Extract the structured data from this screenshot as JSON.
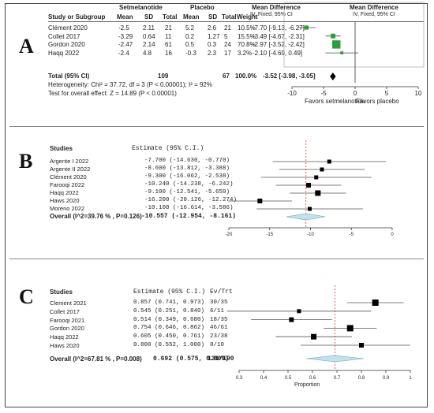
{
  "panel_labels": [
    "A",
    "B",
    "C"
  ],
  "chart_data": [
    {
      "type": "table",
      "panel": "A",
      "group_headers": {
        "experimental": "Setmelanotide",
        "control": "Placebo",
        "effect": "Mean Difference",
        "effect_sub": "IV, Fixed, 95% CI",
        "plot": "Mean Difference",
        "plot_sub": "IV, Fixed, 95% CI"
      },
      "column_headers": [
        "Study or Subgroup",
        "Mean",
        "SD",
        "Total",
        "Mean",
        "SD",
        "Total",
        "Weight"
      ],
      "studies": [
        {
          "name": "Clément 2020",
          "m1": "-2.5",
          "sd1": "2.11",
          "n1": "21",
          "m2": "5.2",
          "sd2": "2.6",
          "n2": "21",
          "weight": "10.5%",
          "ci_text": "-7.70 [-9.13, -6.27]",
          "est": -7.7,
          "lo": -9.13,
          "hi": -6.27,
          "color": "#2e9e3a"
        },
        {
          "name": "Collet 2017",
          "m1": "-3.29",
          "sd1": "0.64",
          "n1": "11",
          "m2": "0.2",
          "sd2": "1.27",
          "n2": "5",
          "weight": "15.5%",
          "ci_text": "-3.49 [-4.67, -2.31]",
          "est": -3.49,
          "lo": -4.67,
          "hi": -2.31,
          "color": "#2e9e3a"
        },
        {
          "name": "Gordon 2020",
          "m1": "-2.47",
          "sd1": "2.14",
          "n1": "61",
          "m2": "0.5",
          "sd2": "0.3",
          "n2": "24",
          "weight": "70.8%",
          "ci_text": "-2.97 [-3.52, -2.42]",
          "est": -2.97,
          "lo": -3.52,
          "hi": -2.42,
          "color": "#2e9e3a"
        },
        {
          "name": "Haqq 2022",
          "m1": "-2.4",
          "sd1": "4.8",
          "n1": "16",
          "m2": "-0.3",
          "sd2": "2.3",
          "n2": "17",
          "weight": "3.2%",
          "ci_text": "-2.10 [-4.69, 0.49]",
          "est": -2.1,
          "lo": -4.69,
          "hi": 0.49,
          "color": "#2e9e3a"
        }
      ],
      "total": {
        "label": "Total (95% CI)",
        "n1": "109",
        "n2": "67",
        "weight": "100.0%",
        "ci_text": "-3.52 [-3.98, -3.05]",
        "est": -3.52,
        "lo": -3.98,
        "hi": -3.05
      },
      "heterogeneity": "Heterogeneity: Chi² = 37.72, df = 3 (P < 0.00001); I² = 92%",
      "overall_effect": "Test for overall effect: Z = 14.89 (P < 0.00001)",
      "axis": {
        "min": -10,
        "max": 10,
        "ticks": [
          -10,
          -5,
          0,
          5,
          10
        ],
        "tick_labels": [
          "-10",
          "-5",
          "0",
          "5",
          "10"
        ]
      },
      "favors_left": "Favors setmelanotide",
      "favors_right": "Favors placebo"
    },
    {
      "type": "table",
      "panel": "B",
      "headers": {
        "studies": "Studies",
        "estimate": "Estimate (95% C.I.)"
      },
      "studies": [
        {
          "name": "Argente I 2022",
          "ci_text": "-7.700 (-14.630,  -0.770)",
          "est": -7.7,
          "lo": -14.63,
          "hi": -0.77,
          "w": 5
        },
        {
          "name": "Argente II 2022",
          "ci_text": "-8.600 (-13.812,  -3.388)",
          "est": -8.6,
          "lo": -13.812,
          "hi": -3.388,
          "w": 5
        },
        {
          "name": "Clément 2020",
          "ci_text": "-9.300 (-16.062,  -2.538)",
          "est": -9.3,
          "lo": -16.062,
          "hi": -2.538,
          "w": 5
        },
        {
          "name": "Farooqi 2022",
          "ci_text": "-10.240 (-14.238,  -6.242)",
          "est": -10.24,
          "lo": -14.238,
          "hi": -6.242,
          "w": 6
        },
        {
          "name": "Haqq 2022",
          "ci_text": "-9.100 (-12.541,  -5.659)",
          "est": -9.1,
          "lo": -12.541,
          "hi": -5.659,
          "w": 7
        },
        {
          "name": "Haws 2020",
          "ci_text": "-16.200 (-20.126, -12.274)",
          "est": -16.2,
          "lo": -20.126,
          "hi": -12.274,
          "w": 6
        },
        {
          "name": "Moreno 2022",
          "ci_text": "-10.100 (-16.614,  -3.586)",
          "est": -10.1,
          "lo": -16.614,
          "hi": -3.586,
          "w": 5
        }
      ],
      "overall": {
        "label": "Overall (I^2=39.76 % , P=0.126)",
        "ci_text": "-10.557 (-12.954,  -8.161)",
        "est": -10.557,
        "lo": -12.954,
        "hi": -8.161
      },
      "axis": {
        "min": -20,
        "max": 0,
        "ticks": [
          -20,
          -15,
          -10,
          -5,
          0
        ],
        "tick_labels": [
          "-20",
          "-15",
          "-10",
          "-5",
          "0"
        ]
      }
    },
    {
      "type": "table",
      "panel": "C",
      "headers": {
        "studies": "Studies",
        "estimate": "Estimate (95% C.I.)",
        "events": "Ev/Trt"
      },
      "studies": [
        {
          "name": "Clement 2021",
          "ci_text": "0.857 (0.741, 0.973)",
          "events": "30/35",
          "est": 0.857,
          "lo": 0.741,
          "hi": 0.973,
          "w": 8
        },
        {
          "name": "Collet 2017",
          "ci_text": "0.545 (0.251, 0.840)",
          "events": "6/11",
          "est": 0.545,
          "lo": 0.251,
          "hi": 0.84,
          "w": 5
        },
        {
          "name": "Farooqi 2021",
          "ci_text": "0.514 (0.349, 0.680)",
          "events": "18/35",
          "est": 0.514,
          "lo": 0.349,
          "hi": 0.68,
          "w": 6
        },
        {
          "name": "Gordon 2020",
          "ci_text": "0.754 (0.646, 0.862)",
          "events": "46/61",
          "est": 0.754,
          "lo": 0.646,
          "hi": 0.862,
          "w": 8
        },
        {
          "name": "Haqq 2022",
          "ci_text": "0.605 (0.450, 0.761)",
          "events": "23/38",
          "est": 0.605,
          "lo": 0.45,
          "hi": 0.761,
          "w": 7
        },
        {
          "name": "Haws 2020",
          "ci_text": "0.800 (0.552, 1.000)",
          "events": "8/10",
          "est": 0.8,
          "lo": 0.552,
          "hi": 1.0,
          "w": 6
        }
      ],
      "overall": {
        "label": "Overall (I^2=67.81 % , P=0.008)",
        "ci_text": "0.692 (0.575, 0.809)",
        "events": "131/190",
        "est": 0.692,
        "lo": 0.575,
        "hi": 0.809
      },
      "axis": {
        "min": 0.3,
        "max": 1.0,
        "ticks": [
          0.3,
          0.4,
          0.5,
          0.6,
          0.7,
          0.8,
          0.9,
          1.0
        ],
        "tick_labels": [
          "0.3",
          "0.4",
          "0.5",
          "0.6",
          "0.7",
          "0.8",
          "0.9",
          "1"
        ],
        "xlabel": "Proportion"
      }
    }
  ]
}
